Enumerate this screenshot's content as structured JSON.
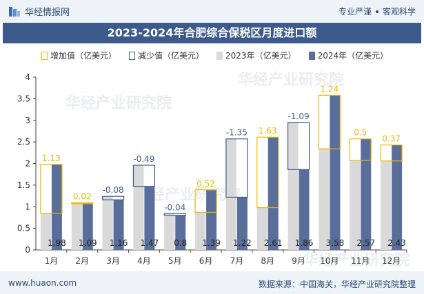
{
  "header": {
    "brand": "华经情报网",
    "tag1": "专业严谨",
    "tag2": "客观科学"
  },
  "footer": {
    "url": "www.huaon.com",
    "source": "数据来源：中国海关，华经产业研究院整理"
  },
  "watermark": "华经产业研究院",
  "colors": {
    "inc": "#e8b800",
    "dec": "#3d5a8c",
    "y2023": "#d9d9d9",
    "y2024": "#5a6e9c",
    "title_bg": "#3d5a8c"
  },
  "chart_data": {
    "type": "bar",
    "title": "2023-2024年合肥综合保税区月度进口额",
    "categories": [
      "1月",
      "2月",
      "3月",
      "4月",
      "5月",
      "6月",
      "7月",
      "8月",
      "9月",
      "10月",
      "11月",
      "12月"
    ],
    "legend": [
      "增加值（亿美元）",
      "减少值（亿美元）",
      "2023年（亿美元）",
      "2024年（亿美元）"
    ],
    "series": [
      {
        "name": "2023年（亿美元）",
        "values": [
          0.85,
          1.07,
          1.24,
          1.96,
          0.84,
          0.87,
          2.57,
          0.98,
          2.95,
          2.34,
          2.07,
          2.06
        ]
      },
      {
        "name": "2024年（亿美元）",
        "values": [
          1.98,
          1.09,
          1.16,
          1.47,
          0.8,
          1.39,
          1.22,
          2.61,
          1.86,
          3.58,
          2.57,
          2.43
        ]
      }
    ],
    "change_values": [
      "1.13",
      "0.02",
      "-0.08",
      "-0.49",
      "-0.04",
      "0.52",
      "-1.35",
      "1.63",
      "-1.09",
      "1.24",
      "0.5",
      "0.37"
    ],
    "ylim": [
      0,
      4
    ],
    "yticks": [
      "0",
      "0.5",
      "1",
      "1.5",
      "2",
      "2.5",
      "3",
      "3.5",
      "4"
    ],
    "xlabel": "",
    "ylabel": ""
  }
}
